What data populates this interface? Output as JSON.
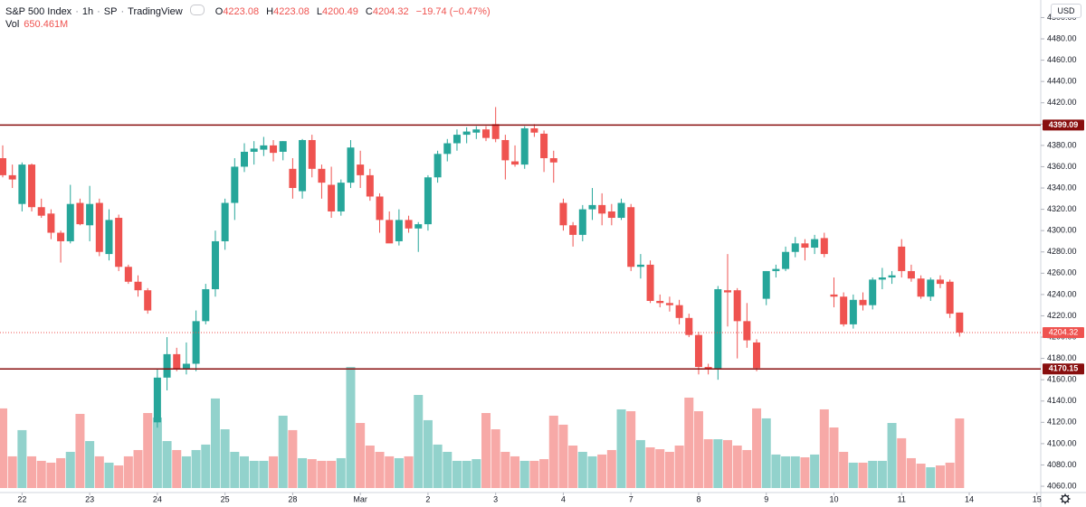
{
  "header": {
    "title": "S&P 500 Index",
    "interval": "1h",
    "exchange": "SP",
    "source": "TradingView",
    "ohlc_letters": [
      "O",
      "H",
      "L",
      "C"
    ],
    "change": "−19.74 (−0.47%)",
    "volume_name": "Vol",
    "volume_label": "650.461M",
    "currency": "USD"
  },
  "chart_data": {
    "type": "candlestick",
    "categories": [
      null,
      null,
      "22",
      null,
      null,
      null,
      null,
      null,
      null,
      "23",
      null,
      null,
      null,
      null,
      null,
      null,
      "24",
      null,
      null,
      null,
      null,
      null,
      null,
      "25",
      null,
      null,
      null,
      null,
      null,
      null,
      "28",
      null,
      null,
      null,
      null,
      null,
      null,
      "Mar",
      null,
      null,
      null,
      null,
      null,
      null,
      "2",
      null,
      null,
      null,
      null,
      null,
      null,
      "3",
      null,
      null,
      null,
      null,
      null,
      null,
      "4",
      null,
      null,
      null,
      null,
      null,
      null,
      "7",
      null,
      null,
      null,
      null,
      null,
      null,
      "8",
      null,
      null,
      null,
      null,
      null,
      null,
      "9",
      null,
      null,
      null,
      null,
      null,
      null,
      "10",
      null,
      null,
      null,
      null,
      null,
      null,
      "11",
      null,
      null,
      null,
      null,
      null,
      null,
      "14",
      null,
      null,
      null,
      null,
      null,
      null,
      "15"
    ],
    "open": [
      4368,
      4352,
      4325,
      4362,
      4322,
      4316,
      4298,
      4290,
      4326,
      4305,
      4326,
      4278,
      4312,
      4266,
      4252,
      4244,
      4120,
      4162,
      4184,
      4170,
      4175,
      4215,
      4245,
      4290,
      4326,
      4360,
      4374,
      4376,
      4380,
      4374,
      4358,
      4337,
      4385,
      4358,
      4343,
      4318,
      4345,
      4362,
      4352,
      4332,
      4310,
      4290,
      4310,
      4302,
      4306,
      4350,
      4372,
      4382,
      4390,
      4392,
      4395,
      4400,
      4385,
      4365,
      4362,
      4396,
      4391,
      4368,
      4326,
      4305,
      4296,
      4320,
      4324,
      4318,
      4312,
      4322,
      4266,
      4268,
      4234,
      4232,
      4230,
      4218,
      4202,
      4172,
      4170,
      4244,
      4244,
      4215,
      4195,
      4236,
      4262,
      4264,
      4280,
      4288,
      4284,
      4293,
      4240,
      4238,
      4212,
      4235,
      4230,
      4254,
      4256,
      4285,
      4262,
      4255,
      4238,
      4254,
      4252,
      4223.08,
      null,
      null,
      null,
      null,
      null,
      null,
      null,
      null
    ],
    "high": [
      4380,
      4362,
      4364,
      4363,
      4330,
      4320,
      4300,
      4343,
      4330,
      4342,
      4330,
      4320,
      4315,
      4268,
      4258,
      4246,
      4170,
      4200,
      4190,
      4195,
      4225,
      4250,
      4300,
      4330,
      4368,
      4382,
      4384,
      4388,
      4385,
      4384,
      4368,
      4386,
      4390,
      4362,
      4360,
      4348,
      4385,
      4375,
      4358,
      4335,
      4318,
      4320,
      4314,
      4308,
      4352,
      4375,
      4386,
      4395,
      4397,
      4398,
      4398,
      4416,
      4390,
      4380,
      4398,
      4400,
      4394,
      4375,
      4330,
      4308,
      4324,
      4340,
      4335,
      4325,
      4330,
      4325,
      4278,
      4272,
      4240,
      4238,
      4235,
      4222,
      4205,
      4175,
      4248,
      4278,
      4246,
      4232,
      4198,
      4262,
      4268,
      4285,
      4294,
      4292,
      4296,
      4298,
      4256,
      4242,
      4240,
      4242,
      4256,
      4265,
      4262,
      4292,
      4268,
      4258,
      4256,
      4258,
      4254,
      4223.08,
      null,
      null,
      null,
      null,
      null,
      null,
      null,
      null
    ],
    "low": [
      4350,
      4340,
      4318,
      4318,
      4312,
      4292,
      4270,
      4288,
      4305,
      4290,
      4276,
      4272,
      4262,
      4250,
      4238,
      4222,
      4115,
      4150,
      4168,
      4165,
      4168,
      4212,
      4238,
      4282,
      4310,
      4355,
      4362,
      4370,
      4365,
      4366,
      4330,
      4330,
      4350,
      4330,
      4312,
      4314,
      4340,
      4340,
      4328,
      4298,
      4290,
      4286,
      4298,
      4280,
      4300,
      4345,
      4365,
      4375,
      4382,
      4386,
      4384,
      4383,
      4348,
      4360,
      4358,
      4388,
      4355,
      4345,
      4300,
      4285,
      4290,
      4310,
      4305,
      4305,
      4310,
      4262,
      4255,
      4232,
      4228,
      4224,
      4212,
      4200,
      4165,
      4165,
      4160,
      4210,
      4180,
      4190,
      4168,
      4230,
      4256,
      4262,
      4275,
      4272,
      4278,
      4275,
      4228,
      4210,
      4208,
      4225,
      4226,
      4245,
      4250,
      4256,
      4252,
      4236,
      4234,
      4246,
      4218,
      4200.49,
      null,
      null,
      null,
      null,
      null,
      null,
      null,
      null
    ],
    "close": [
      4352,
      4348,
      4362,
      4322,
      4314,
      4298,
      4290,
      4325,
      4306,
      4325,
      4280,
      4310,
      4266,
      4252,
      4244,
      4225,
      4162,
      4184,
      4170,
      4175,
      4215,
      4245,
      4290,
      4326,
      4360,
      4374,
      4377,
      4380,
      4373,
      4384,
      4340,
      4385,
      4358,
      4345,
      4318,
      4345,
      4378,
      4352,
      4332,
      4310,
      4288,
      4310,
      4302,
      4306,
      4350,
      4372,
      4382,
      4390,
      4393,
      4395,
      4387,
      4386,
      4366,
      4362,
      4396,
      4392,
      4368,
      4364,
      4305,
      4296,
      4320,
      4324,
      4316,
      4312,
      4326,
      4266,
      4268,
      4234,
      4232,
      4230,
      4218,
      4202,
      4172,
      4170,
      4245,
      4242,
      4215,
      4197,
      4171,
      4262,
      4264,
      4280,
      4288,
      4284,
      4292,
      4278,
      4238,
      4212,
      4235,
      4230,
      4254,
      4256,
      4258,
      4262,
      4255,
      4238,
      4254,
      4250,
      4222,
      4204.32,
      null,
      null,
      null,
      null,
      null,
      null,
      null,
      null
    ],
    "volume": [
      744,
      296,
      541,
      296,
      254,
      237,
      279,
      338,
      693,
      439,
      296,
      237,
      211,
      296,
      355,
      701,
      659,
      439,
      355,
      296,
      355,
      406,
      837,
      549,
      338,
      296,
      254,
      254,
      296,
      676,
      541,
      279,
      270,
      254,
      254,
      279,
      1132,
      608,
      397,
      338,
      296,
      279,
      296,
      870,
      634,
      406,
      338,
      254,
      254,
      270,
      701,
      549,
      338,
      296,
      254,
      254,
      270,
      676,
      592,
      397,
      338,
      296,
      313,
      355,
      735,
      718,
      448,
      380,
      363,
      338,
      397,
      845,
      718,
      456,
      456,
      448,
      397,
      355,
      744,
      651,
      313,
      296,
      296,
      287,
      313,
      735,
      566,
      338,
      237,
      237,
      254,
      254,
      608,
      465,
      279,
      228,
      194,
      211,
      237,
      650.461,
      null,
      null,
      null,
      null,
      null,
      null,
      null,
      null
    ],
    "up_color": "#26a69a",
    "down_color": "#ef5350",
    "ylim": [
      4054.1,
      4516.5
    ],
    "yticks": [
      {
        "value": 4060,
        "label": "4060.00"
      },
      {
        "value": 4080,
        "label": "4080.00"
      },
      {
        "value": 4100,
        "label": "4100.00"
      },
      {
        "value": 4120,
        "label": "4120.00"
      },
      {
        "value": 4140,
        "label": "4140.00"
      },
      {
        "value": 4160,
        "label": "4160.00"
      },
      {
        "value": 4180,
        "label": "4180.00"
      },
      {
        "value": 4200,
        "label": "4200.00"
      },
      {
        "value": 4220,
        "label": "4220.00"
      },
      {
        "value": 4240,
        "label": "4240.00"
      },
      {
        "value": 4260,
        "label": "4260.00"
      },
      {
        "value": 4280,
        "label": "4280.00"
      },
      {
        "value": 4300,
        "label": "4300.00"
      },
      {
        "value": 4320,
        "label": "4320.00"
      },
      {
        "value": 4340,
        "label": "4340.00"
      },
      {
        "value": 4360,
        "label": "4360.00"
      },
      {
        "value": 4380,
        "label": "4380.00"
      },
      {
        "value": 4400,
        "label": "4400.00"
      },
      {
        "value": 4420,
        "label": "4420.00"
      },
      {
        "value": 4440,
        "label": "4440.00"
      },
      {
        "value": 4460,
        "label": "4460.00"
      },
      {
        "value": 4480,
        "label": "4480.00"
      },
      {
        "value": 4500,
        "label": "4500.00"
      }
    ],
    "hlines": [
      {
        "value": 4399.09,
        "color": "#880e0e"
      },
      {
        "value": 4170.15,
        "color": "#880e0e"
      }
    ],
    "grid": false
  }
}
